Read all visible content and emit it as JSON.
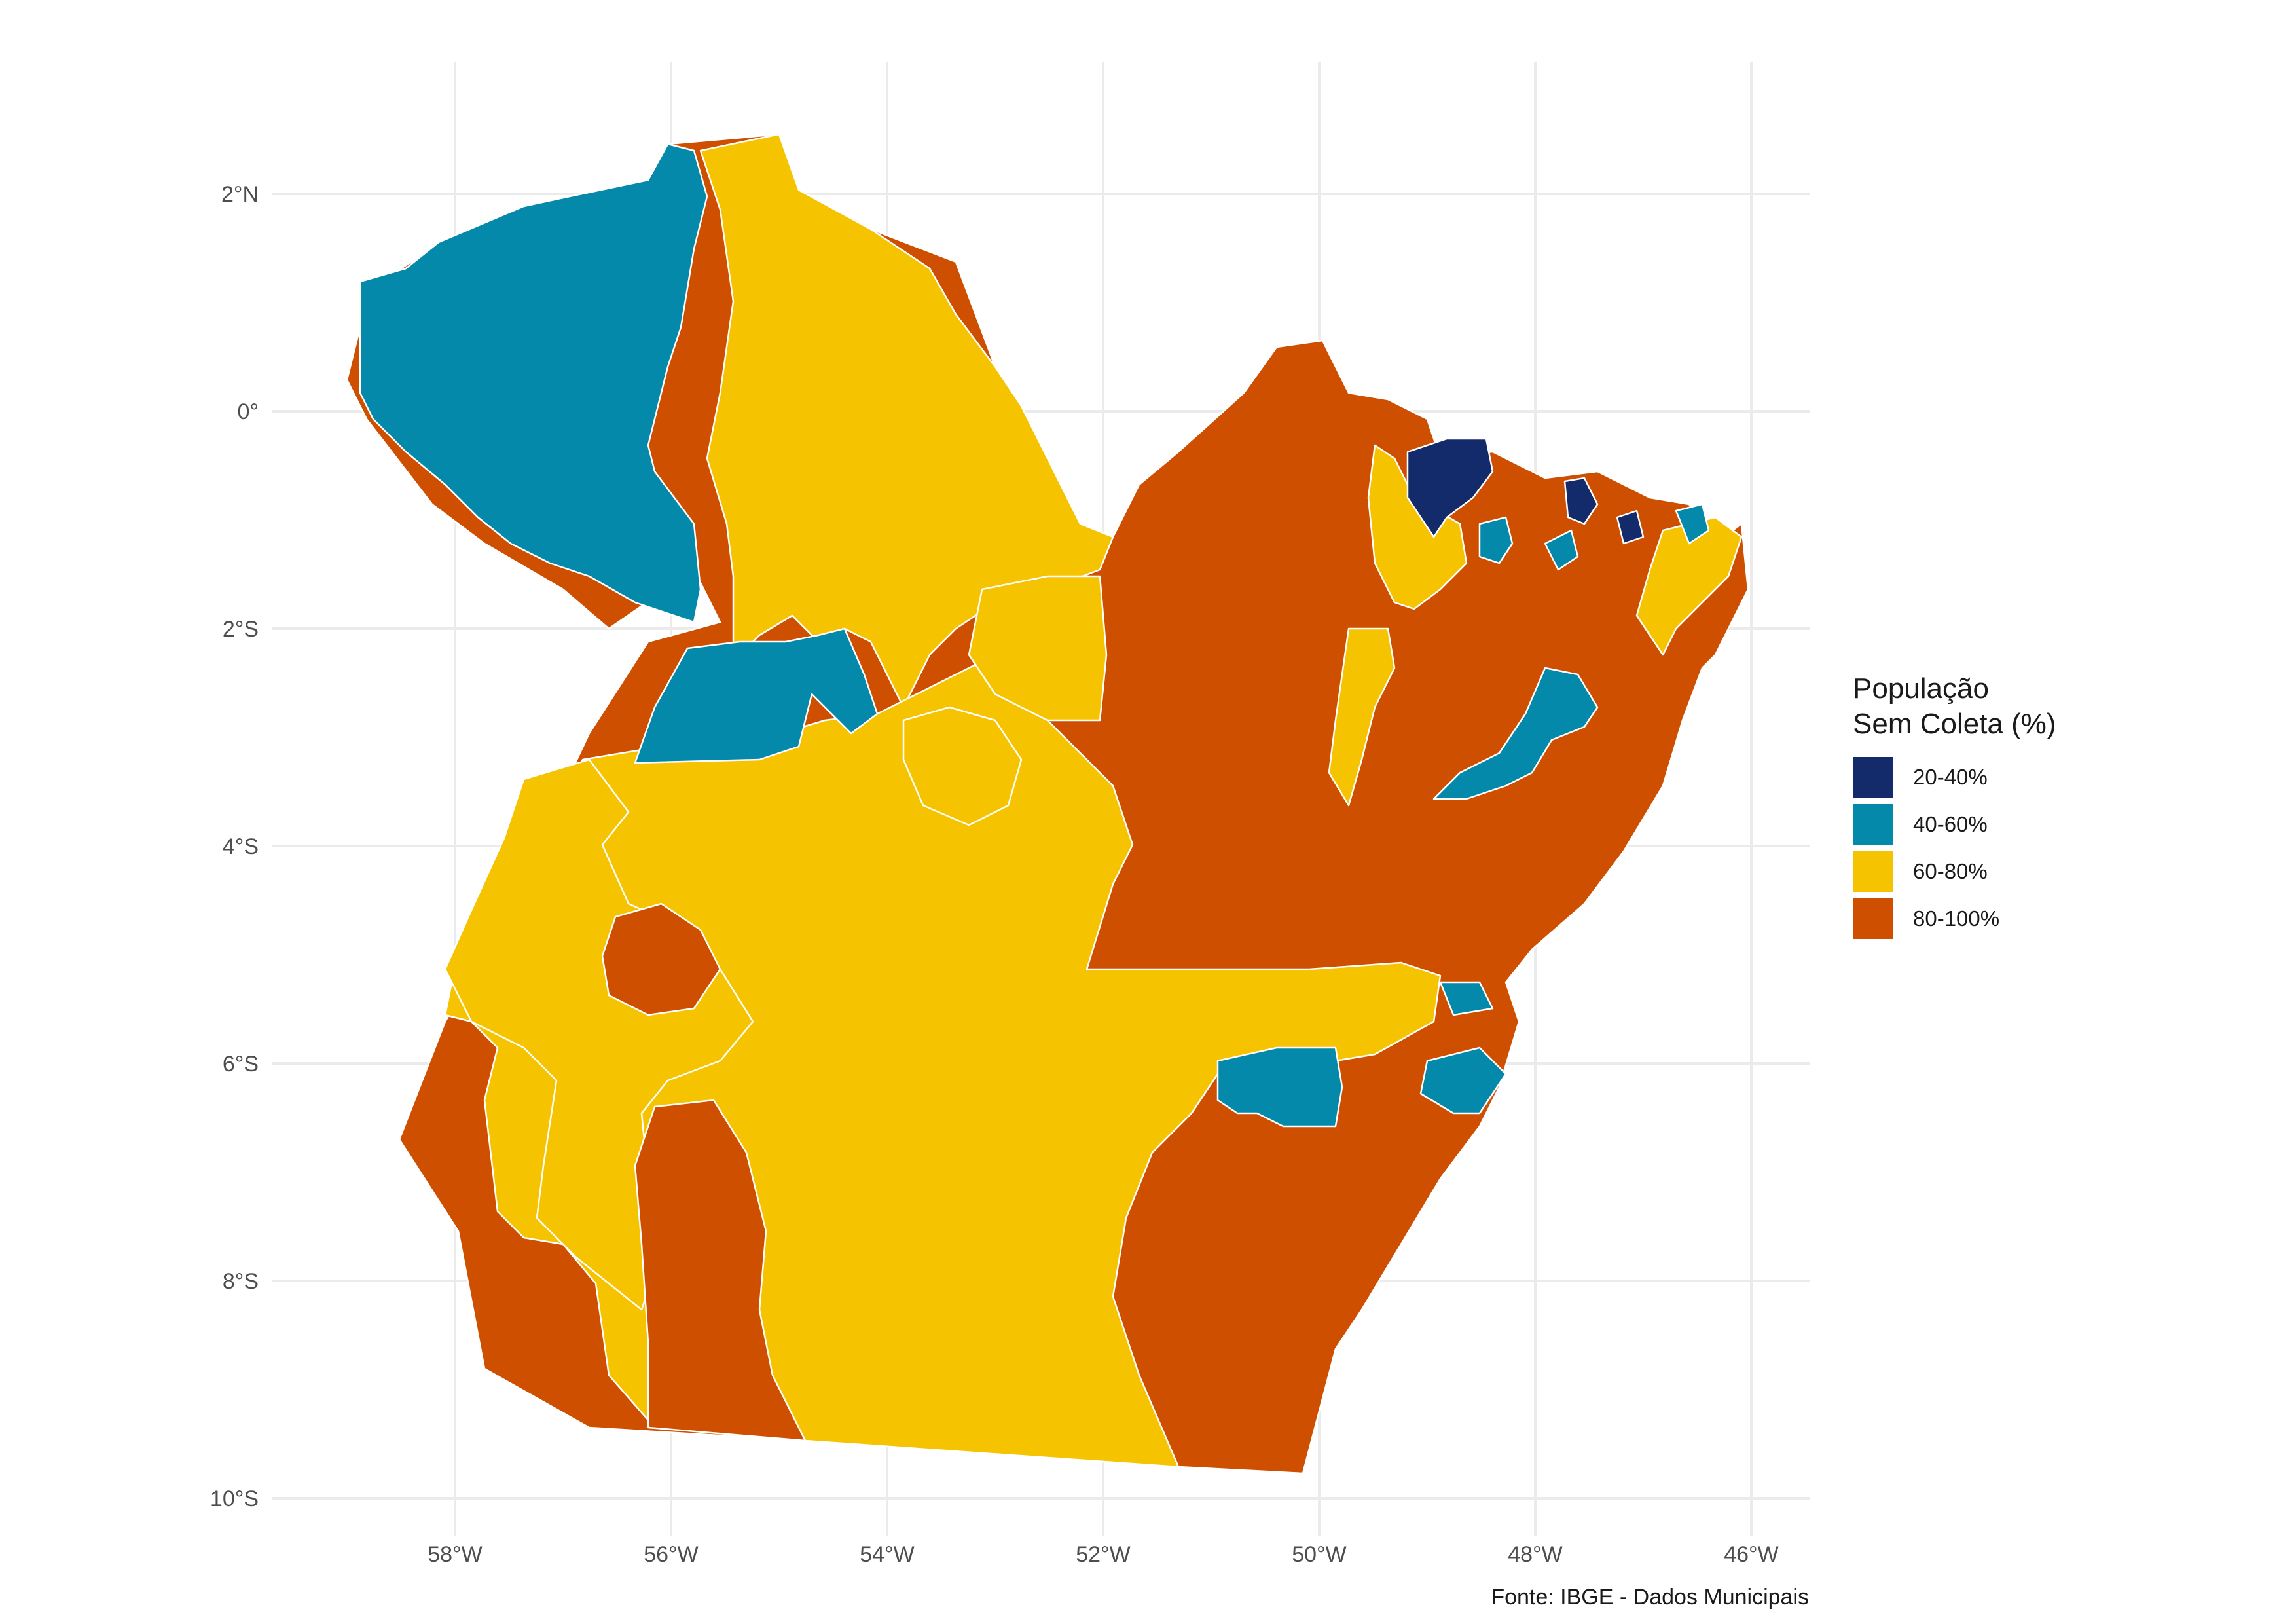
{
  "legend": {
    "title_line1": "População",
    "title_line2": "Sem Coleta (%)",
    "items": [
      {
        "label": "20-40%",
        "color": "#132b6b"
      },
      {
        "label": "40-60%",
        "color": "#0489aa"
      },
      {
        "label": "60-80%",
        "color": "#f5c300"
      },
      {
        "label": "80-100%",
        "color": "#cf4f00"
      }
    ]
  },
  "axes": {
    "lat_labels": [
      "2°N",
      "0°",
      "2°S",
      "4°S",
      "6°S",
      "8°S",
      "10°S"
    ],
    "lon_labels": [
      "58°W",
      "56°W",
      "54°W",
      "52°W",
      "50°W",
      "48°W",
      "46°W"
    ]
  },
  "caption": "Fonte: IBGE - Dados Municipais"
}
